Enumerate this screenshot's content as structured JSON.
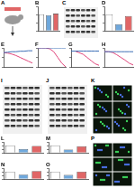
{
  "chart_data": [
    {
      "title": "B",
      "type": "bar",
      "categories": [
        null,
        null,
        null
      ],
      "values": [
        1.0,
        0.95,
        1.05
      ],
      "colors": [
        "#ffffff",
        "#6fa8dc",
        "#e06666"
      ],
      "ylim": [
        0,
        1.5
      ],
      "yticks": [
        0,
        0.5,
        1,
        1.5
      ],
      "tick_labels": false
    },
    {
      "title": "D",
      "type": "bar",
      "categories": [
        null,
        null,
        null
      ],
      "values": [
        1.0,
        0.4,
        0.9
      ],
      "colors": [
        "#ffffff",
        "#6fa8dc",
        "#e06666"
      ],
      "ylim": [
        0,
        1.5
      ],
      "yticks": [
        0,
        0.5,
        1,
        1.5
      ],
      "tick_labels": false
    },
    {
      "title": "E",
      "type": "line",
      "categories": [
        null,
        null,
        null,
        null,
        null,
        null,
        null,
        null
      ],
      "series": [
        {
          "color": "#3d6fb6",
          "values": [
            100,
            101,
            102,
            102,
            103,
            103,
            104,
            104
          ]
        },
        {
          "color": "#e0457b",
          "values": [
            100,
            99,
            97,
            94,
            90,
            86,
            82,
            78
          ]
        }
      ],
      "ylim": [
        70,
        110
      ],
      "yticks": [
        70,
        90,
        110
      ],
      "tick_labels": false
    },
    {
      "title": "F",
      "type": "line",
      "categories": [
        null,
        null,
        null,
        null,
        null,
        null,
        null,
        null
      ],
      "series": [
        {
          "color": "#3d6fb6",
          "values": [
            100,
            100,
            100,
            100,
            100,
            100,
            100,
            100
          ]
        },
        {
          "color": "#e0457b",
          "values": [
            100,
            100,
            100,
            95,
            80,
            50,
            20,
            0
          ]
        }
      ],
      "ylim": [
        0,
        100
      ],
      "yticks": [
        0,
        50,
        100
      ],
      "tick_labels": false
    },
    {
      "title": "G",
      "type": "line",
      "categories": [
        null,
        null,
        null,
        null,
        null,
        null,
        null,
        null
      ],
      "series": [
        {
          "color": "#3d6fb6",
          "values": [
            10,
            10,
            10,
            10,
            10,
            10,
            10,
            10
          ]
        },
        {
          "color": "#e0457b",
          "values": [
            10,
            10,
            9,
            8,
            6,
            4,
            2,
            1
          ]
        }
      ],
      "ylim": [
        0,
        12
      ],
      "yticks": [
        0,
        6,
        12
      ],
      "tick_labels": false
    },
    {
      "title": "H",
      "type": "line",
      "categories": [
        null,
        null,
        null,
        null,
        null,
        null,
        null,
        null
      ],
      "series": [
        {
          "color": "#3d6fb6",
          "values": [
            4,
            4,
            4,
            4,
            4,
            4,
            4,
            4
          ]
        },
        {
          "color": "#e0457b",
          "values": [
            4,
            4,
            3.8,
            3.2,
            2.5,
            1.8,
            1,
            0.5
          ]
        }
      ],
      "ylim": [
        0,
        5
      ],
      "yticks": [
        0,
        5
      ],
      "tick_labels": false
    },
    {
      "title": "L",
      "type": "bar",
      "categories": [
        null,
        null,
        null
      ],
      "values": [
        1.0,
        0.5,
        0.95
      ],
      "colors": [
        "#ffffff",
        "#6fa8dc",
        "#e06666"
      ],
      "ylim": [
        0,
        1.5
      ],
      "yticks": [
        0,
        0.5,
        1,
        1.5
      ],
      "tick_labels": false
    },
    {
      "title": "M",
      "type": "bar",
      "categories": [
        null,
        null,
        null
      ],
      "values": [
        1.0,
        0.45,
        0.9
      ],
      "colors": [
        "#ffffff",
        "#6fa8dc",
        "#e06666"
      ],
      "ylim": [
        0,
        1.5
      ],
      "yticks": [
        0,
        0.5,
        1,
        1.5
      ],
      "tick_labels": false
    },
    {
      "title": "N",
      "type": "bar",
      "categories": [
        null,
        null,
        null
      ],
      "values": [
        1.0,
        0.6,
        1.1
      ],
      "colors": [
        "#ffffff",
        "#6fa8dc",
        "#e06666"
      ],
      "ylim": [
        0,
        1.5
      ],
      "yticks": [
        0,
        0.5,
        1,
        1.5
      ],
      "tick_labels": false
    },
    {
      "title": "O",
      "type": "bar",
      "categories": [
        null,
        null,
        null
      ],
      "values": [
        1.0,
        0.55,
        1.0
      ],
      "colors": [
        "#ffffff",
        "#6fa8dc",
        "#e06666"
      ],
      "ylim": [
        0,
        1.5
      ],
      "yticks": [
        0,
        0.5,
        1,
        1.5
      ],
      "tick_labels": false
    }
  ],
  "other_panels": [
    "A",
    "C",
    "I",
    "J",
    "K",
    "P"
  ]
}
